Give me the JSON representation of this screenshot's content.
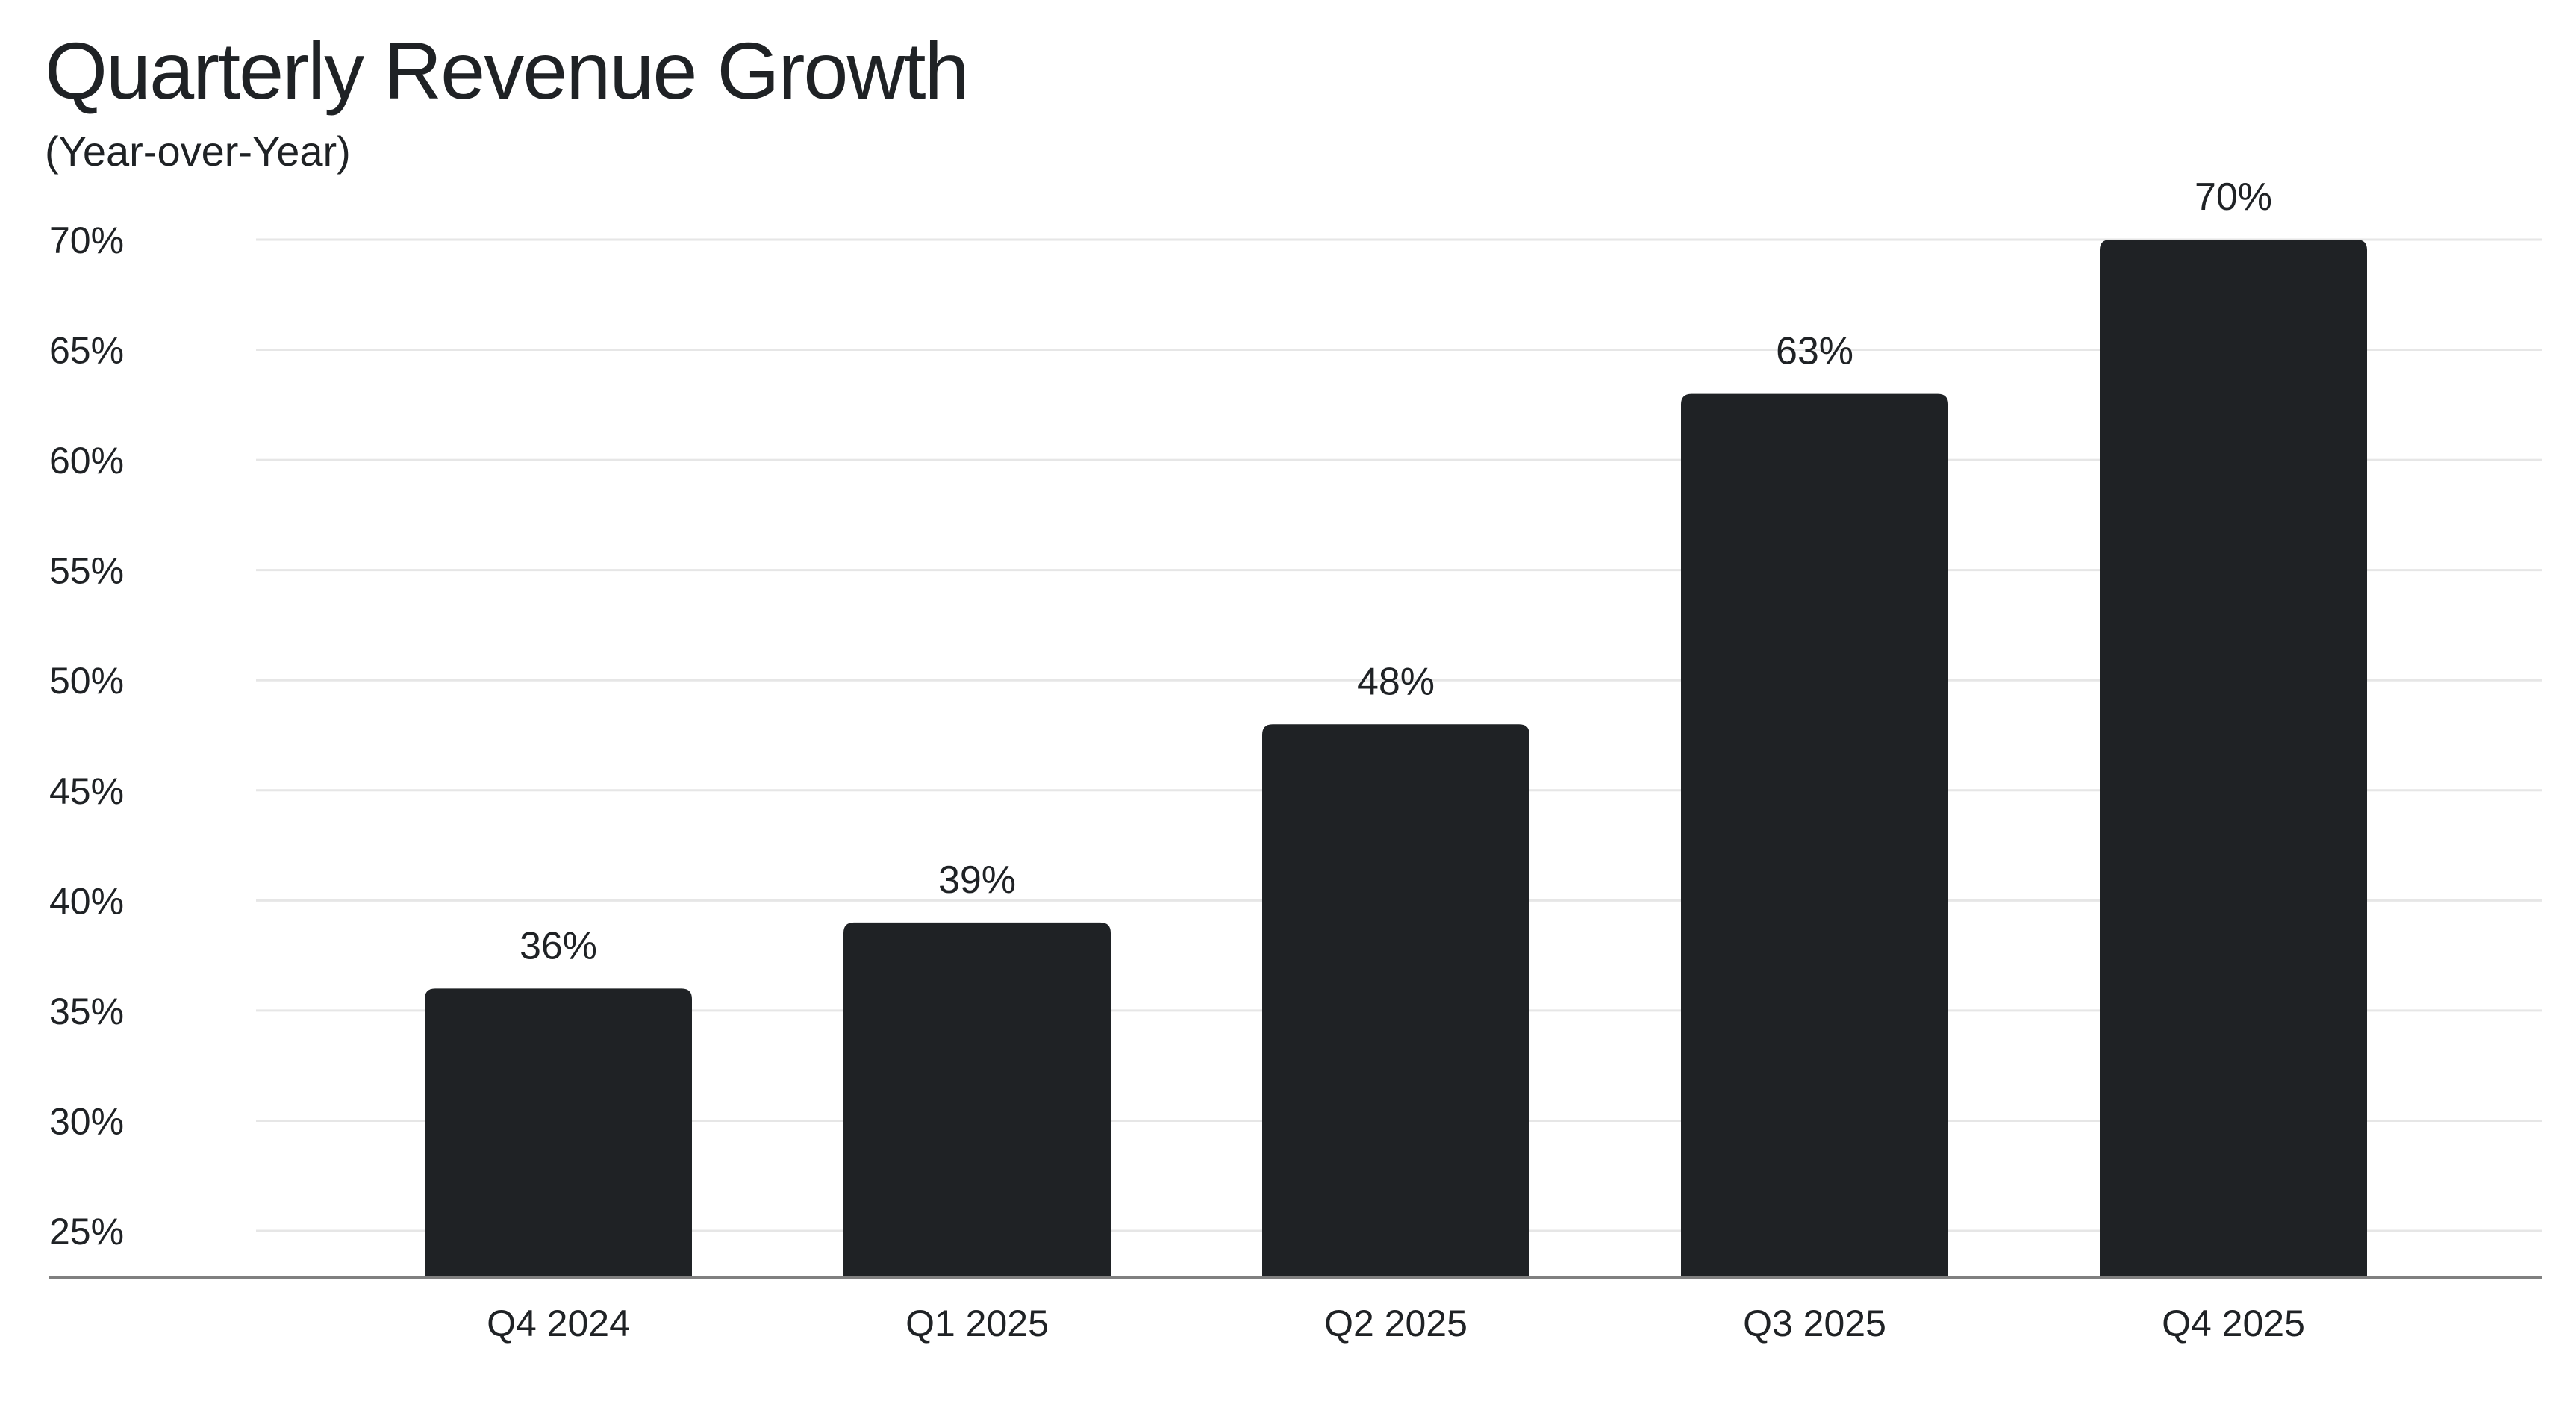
{
  "chart_data": {
    "type": "bar",
    "title": "Quarterly Revenue Growth",
    "subtitle": "(Year-over-Year)",
    "xlabel": "",
    "ylabel": "",
    "categories": [
      "Q4 2024",
      "Q1 2025",
      "Q2 2025",
      "Q3 2025",
      "Q4 2025"
    ],
    "values": [
      36,
      39,
      48,
      63,
      70
    ],
    "data_labels": [
      "36%",
      "39%",
      "48%",
      "63%",
      "70%"
    ],
    "ylim": [
      22.9,
      70
    ],
    "yticks": [
      25,
      30,
      35,
      40,
      45,
      50,
      55,
      60,
      65,
      70
    ],
    "ytick_labels": [
      "25%",
      "30%",
      "35%",
      "40%",
      "45%",
      "50%",
      "55%",
      "60%",
      "65%",
      "70%"
    ],
    "grid": true,
    "legend": "none",
    "colors": {
      "bar": "#1f2225",
      "grid": "#e6e6e6",
      "axis": "#808080",
      "text": "#1f2225"
    }
  }
}
